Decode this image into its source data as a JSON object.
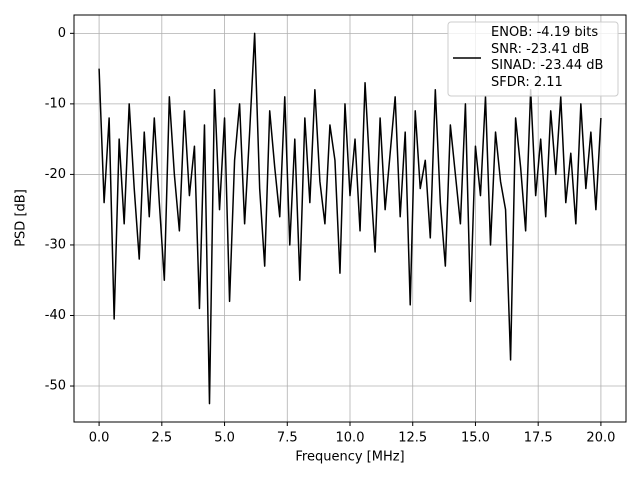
{
  "chart_data": {
    "type": "line",
    "xlabel": "Frequency [MHz]",
    "ylabel": "PSD [dB]",
    "x": [
      0,
      0.2,
      0.4,
      0.6,
      0.8,
      1,
      1.2,
      1.4,
      1.6,
      1.8,
      2,
      2.2,
      2.4,
      2.6,
      2.8,
      3,
      3.2,
      3.4,
      3.6,
      3.8,
      4,
      4.2,
      4.4,
      4.6,
      4.8,
      5,
      5.2,
      5.4,
      5.6,
      5.8,
      6,
      6.2,
      6.4,
      6.6,
      6.8,
      7,
      7.2,
      7.4,
      7.6,
      7.8,
      8,
      8.2,
      8.4,
      8.6,
      8.8,
      9,
      9.2,
      9.4,
      9.6,
      9.8,
      10,
      10.2,
      10.4,
      10.6,
      10.8,
      11,
      11.2,
      11.4,
      11.6,
      11.8,
      12,
      12.2,
      12.4,
      12.6,
      12.8,
      13,
      13.2,
      13.4,
      13.6,
      13.8,
      14,
      14.2,
      14.4,
      14.6,
      14.8,
      15,
      15.2,
      15.4,
      15.6,
      15.8,
      16,
      16.2,
      16.4,
      16.6,
      16.8,
      17,
      17.2,
      17.4,
      17.6,
      17.8,
      18,
      18.2,
      18.4,
      18.6,
      18.8,
      19,
      19.2,
      19.4,
      19.6,
      19.8,
      20
    ],
    "series": [
      {
        "name": "ENOB: -4.19 bits\nSNR: -23.41 dB\nSINAD: -23.44 dB\nSFDR: 2.11",
        "color": "#000000",
        "values": [
          -5,
          -24,
          -12,
          -40.5,
          -15,
          -27,
          -10,
          -22,
          -32,
          -14,
          -26,
          -12,
          -24,
          -35,
          -9,
          -20,
          -28,
          -11,
          -23,
          -16,
          -39,
          -13,
          -52.5,
          -8,
          -25,
          -12,
          -38,
          -18,
          -10,
          -27,
          -14,
          0,
          -22,
          -33,
          -11,
          -19,
          -26,
          -9,
          -30,
          -15,
          -35,
          -12,
          -24,
          -8,
          -21,
          -27,
          -13,
          -18,
          -34,
          -10,
          -23,
          -15,
          -28,
          -7,
          -20,
          -31,
          -12,
          -25,
          -17,
          -9,
          -26,
          -14,
          -38.5,
          -11,
          -22,
          -18,
          -29,
          -8,
          -24,
          -33,
          -13,
          -20,
          -27,
          -10,
          -38,
          -16,
          -23,
          -9,
          -30,
          -14,
          -21,
          -25,
          -46.3,
          -12,
          -19,
          -28,
          -8,
          -23,
          -15,
          -26,
          -11,
          -20,
          -9,
          -24,
          -17,
          -27,
          -10,
          -22,
          -14,
          -25,
          -12
        ]
      }
    ],
    "xlim": [
      -1,
      21
    ],
    "xticks": [
      {
        "value": 0,
        "label": "0.0"
      },
      2.5,
      {
        "value": 5,
        "label": "5.0"
      },
      7.5,
      {
        "value": 10,
        "label": "10.0"
      },
      12.5,
      {
        "value": 15,
        "label": "15.0"
      },
      17.5,
      {
        "value": 20,
        "label": "20.0"
      }
    ],
    "ylim": [
      -55.1,
      2.6
    ],
    "yticks": [
      0,
      -10,
      -20,
      -30,
      -40,
      -50
    ],
    "grid": true,
    "legend": "upper right"
  }
}
